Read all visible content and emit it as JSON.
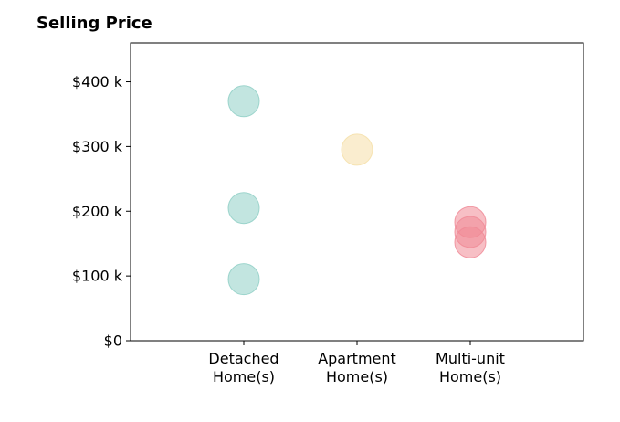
{
  "chart_data": {
    "type": "scatter",
    "title": "Selling Price",
    "xlabel": "",
    "ylabel": "",
    "categories": [
      [
        "Detached",
        "Home(s)"
      ],
      [
        "Apartment",
        "Home(s)"
      ],
      [
        "Multi-unit",
        "Home(s)"
      ]
    ],
    "xlim": [
      0,
      4
    ],
    "ylim": [
      0,
      460000
    ],
    "yticks": [
      0,
      100000,
      200000,
      300000,
      400000
    ],
    "ytick_labels": [
      "$0",
      "$100 k",
      "$200 k",
      "$300 k",
      "$400 k"
    ],
    "grid": false,
    "legend": "none",
    "series": [
      {
        "category_index": 0,
        "color": "#8fcfc6",
        "values": [
          370000,
          205000,
          95000
        ]
      },
      {
        "category_index": 1,
        "color": "#f5dfa8",
        "values": [
          295000
        ]
      },
      {
        "category_index": 2,
        "color": "#f08a96",
        "values": [
          183000,
          168000,
          152000
        ]
      }
    ]
  }
}
